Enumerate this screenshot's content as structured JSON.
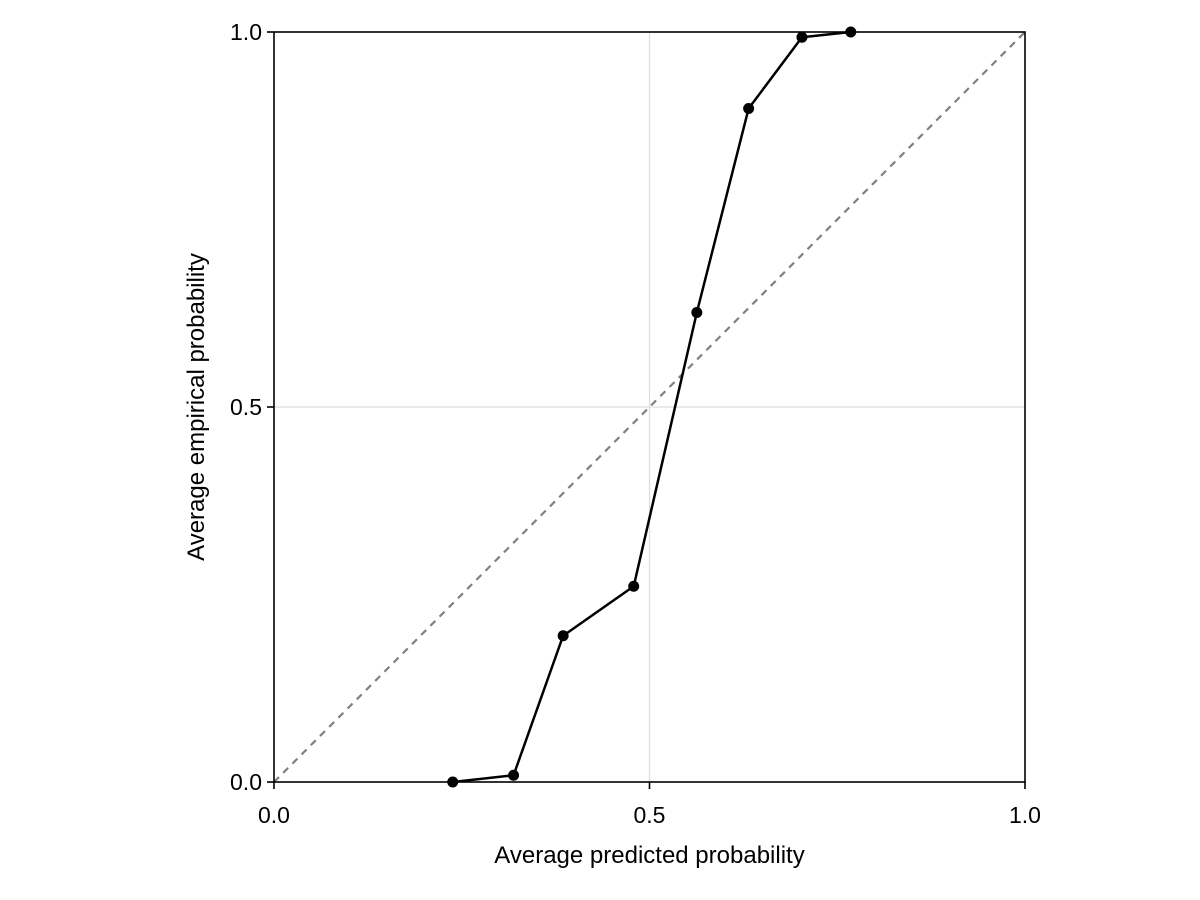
{
  "chart_data": {
    "type": "line",
    "title": "",
    "xlabel": "Average predicted probability",
    "ylabel": "Average empirical probability",
    "xlim": [
      0.0,
      1.0
    ],
    "ylim": [
      0.0,
      1.0
    ],
    "xticks": [
      0.0,
      0.5,
      1.0
    ],
    "yticks": [
      0.0,
      0.5,
      1.0
    ],
    "xtick_labels": [
      "0.0",
      "0.5",
      "1.0"
    ],
    "ytick_labels": [
      "0.0",
      "0.5",
      "1.0"
    ],
    "grid": true,
    "legend": "none",
    "series": [
      {
        "x": [
          0.238,
          0.319,
          0.385,
          0.479,
          0.563,
          0.632,
          0.703,
          0.768
        ],
        "y": [
          0.0,
          0.009,
          0.195,
          0.261,
          0.626,
          0.898,
          0.993,
          1.0
        ],
        "color": "#000000",
        "markers": true,
        "line_style": "solid"
      }
    ],
    "reference_line": {
      "x": [
        0.0,
        1.0
      ],
      "y": [
        0.0,
        1.0
      ],
      "color": "#808080",
      "line_style": "dashed"
    },
    "colors": {
      "grid": "#dddddd",
      "axis": "#000000"
    }
  }
}
